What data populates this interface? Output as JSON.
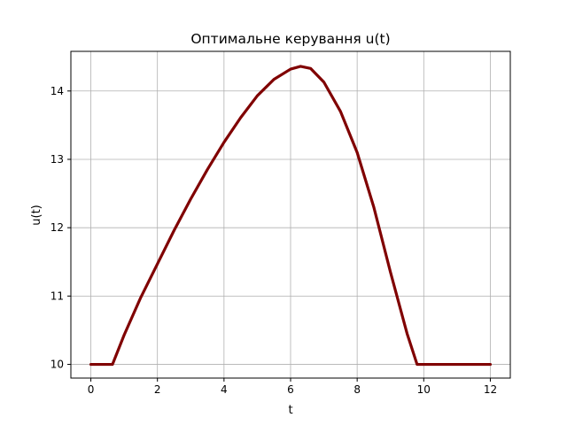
{
  "chart_data": {
    "type": "line",
    "title": "Оптимальне керування u(t)",
    "xlabel": "t",
    "ylabel": "u(t)",
    "xlim": [
      -0.6,
      12.6
    ],
    "ylim": [
      9.8,
      14.58
    ],
    "xticks": [
      0,
      2,
      4,
      6,
      8,
      10,
      12
    ],
    "yticks": [
      10,
      11,
      12,
      13,
      14
    ],
    "grid": true,
    "series": [
      {
        "color": "#800000",
        "x": [
          0,
          0.65,
          1.0,
          1.5,
          2.0,
          2.5,
          3.0,
          3.5,
          4.0,
          4.5,
          5.0,
          5.5,
          6.0,
          6.3,
          6.6,
          7.0,
          7.5,
          8.0,
          8.5,
          9.0,
          9.5,
          9.8,
          10.0,
          11.0,
          12.0
        ],
        "y": [
          10.0,
          10.0,
          10.43,
          10.98,
          11.47,
          11.96,
          12.42,
          12.85,
          13.25,
          13.61,
          13.93,
          14.17,
          14.32,
          14.36,
          14.33,
          14.13,
          13.7,
          13.1,
          12.3,
          11.35,
          10.45,
          10.0,
          10.0,
          10.0,
          10.0
        ]
      }
    ]
  }
}
